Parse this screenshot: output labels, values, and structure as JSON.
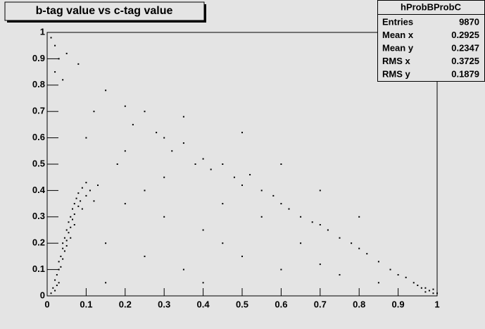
{
  "chart_data": {
    "type": "scatter",
    "title": "b-tag value vs c-tag value",
    "color": "#000000",
    "x": [
      0.02,
      0.025,
      0.03,
      0.03,
      0.035,
      0.035,
      0.04,
      0.04,
      0.045,
      0.045,
      0.05,
      0.05,
      0.055,
      0.055,
      0.06,
      0.06,
      0.065,
      0.065,
      0.07,
      0.07,
      0.075,
      0.08,
      0.08,
      0.085,
      0.09,
      0.09,
      0.1,
      0.1,
      0.11,
      0.12,
      0.13,
      0.03,
      0.025,
      0.04,
      0.05,
      0.06,
      0.07,
      0.02,
      0.01,
      0.015,
      0.15,
      0.2,
      0.22,
      0.25,
      0.28,
      0.3,
      0.32,
      0.35,
      0.38,
      0.4,
      0.42,
      0.45,
      0.48,
      0.5,
      0.52,
      0.55,
      0.58,
      0.6,
      0.62,
      0.65,
      0.68,
      0.7,
      0.72,
      0.75,
      0.78,
      0.8,
      0.82,
      0.85,
      0.88,
      0.9,
      0.92,
      0.94,
      0.95,
      0.96,
      0.97,
      0.98,
      0.99,
      0.97,
      0.99,
      1.0,
      0.01,
      0.02,
      0.03,
      0.05,
      0.08,
      0.02,
      0.04,
      0.15,
      0.2,
      0.25,
      0.3,
      0.35,
      0.4,
      0.45,
      0.5,
      0.55,
      0.6,
      0.65,
      0.7,
      0.75,
      0.3,
      0.2,
      0.1,
      0.12,
      0.18,
      0.4,
      0.6,
      0.7,
      0.8,
      0.85,
      0.15,
      0.25,
      0.45,
      0.35,
      0.5
    ],
    "values": [
      0.06,
      0.08,
      0.1,
      0.13,
      0.15,
      0.11,
      0.18,
      0.2,
      0.22,
      0.17,
      0.25,
      0.21,
      0.28,
      0.24,
      0.3,
      0.26,
      0.33,
      0.29,
      0.35,
      0.31,
      0.37,
      0.34,
      0.39,
      0.36,
      0.41,
      0.33,
      0.38,
      0.43,
      0.4,
      0.36,
      0.42,
      0.05,
      0.04,
      0.14,
      0.19,
      0.22,
      0.27,
      0.02,
      0.01,
      0.03,
      0.78,
      0.72,
      0.65,
      0.7,
      0.62,
      0.6,
      0.55,
      0.58,
      0.5,
      0.52,
      0.48,
      0.5,
      0.45,
      0.42,
      0.46,
      0.4,
      0.38,
      0.35,
      0.33,
      0.3,
      0.28,
      0.27,
      0.25,
      0.22,
      0.2,
      0.18,
      0.16,
      0.13,
      0.1,
      0.08,
      0.07,
      0.05,
      0.04,
      0.03,
      0.03,
      0.02,
      0.01,
      0.015,
      0.025,
      0.01,
      0.98,
      0.95,
      0.9,
      0.92,
      0.88,
      0.85,
      0.82,
      0.2,
      0.35,
      0.15,
      0.3,
      0.1,
      0.25,
      0.2,
      0.15,
      0.3,
      0.1,
      0.2,
      0.12,
      0.08,
      0.45,
      0.55,
      0.6,
      0.7,
      0.5,
      0.05,
      0.5,
      0.4,
      0.3,
      0.05,
      0.05,
      0.4,
      0.35,
      0.68,
      0.62
    ],
    "xlim": [
      0,
      1
    ],
    "xticks": [
      0,
      0.1,
      0.2,
      0.3,
      0.4,
      0.5,
      0.6,
      0.7,
      0.8,
      0.9,
      1
    ],
    "ylim": [
      0,
      1
    ],
    "yticks": [
      0,
      0.1,
      0.2,
      0.3,
      0.4,
      0.5,
      0.6,
      0.7,
      0.8,
      0.9,
      1
    ]
  },
  "stats": {
    "title": "hProbBProbC",
    "rows": [
      {
        "label": "Entries",
        "value": "9870"
      },
      {
        "label": "Mean x",
        "value": "0.2925"
      },
      {
        "label": "Mean y",
        "value": "0.2347"
      },
      {
        "label": "RMS x",
        "value": "0.3725"
      },
      {
        "label": "RMS y",
        "value": "0.1879"
      }
    ]
  }
}
